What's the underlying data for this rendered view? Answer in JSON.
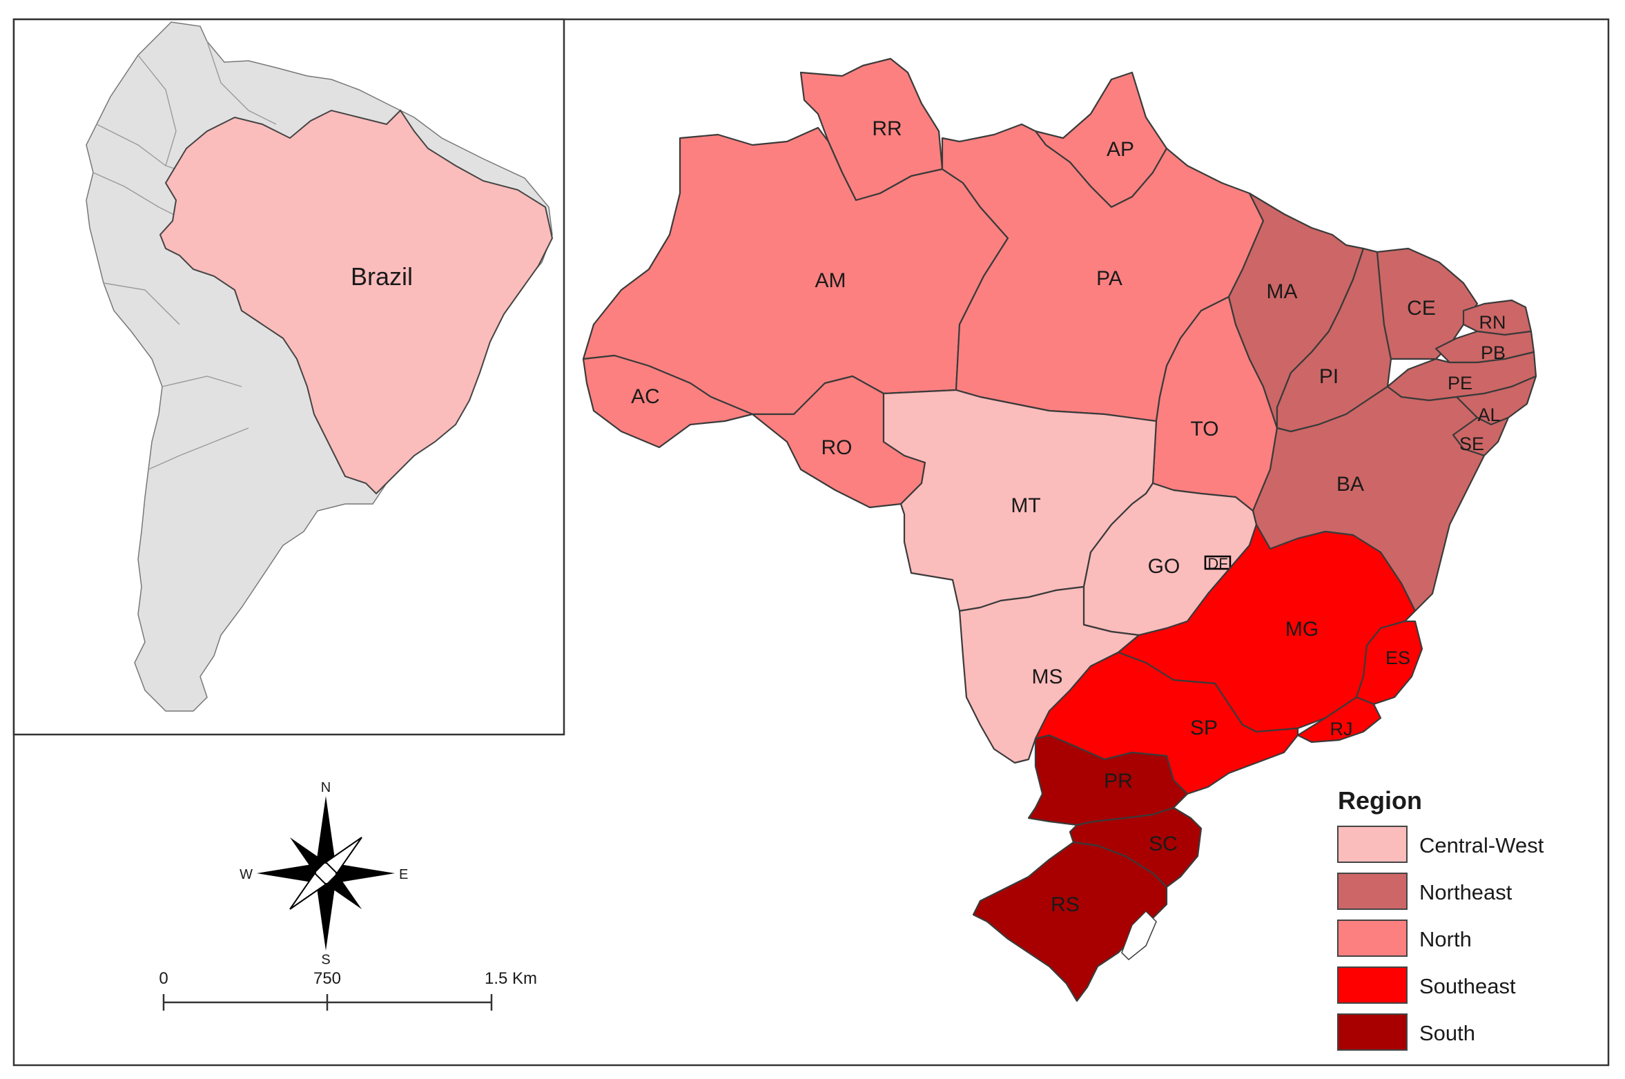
{
  "colors": {
    "Central-West": "#fbbcbc",
    "Northeast": "#cd6666",
    "North": "#fc8080",
    "Southeast": "#ff0000",
    "South": "#a80000",
    "context_land": "#e1e1e1",
    "brazil_inset": "#fbbcbc"
  },
  "inset": {
    "country_label": "Brazil"
  },
  "compass": {
    "n": "N",
    "s": "S",
    "e": "E",
    "w": "W"
  },
  "scale_bar": {
    "ticks": [
      "0",
      "750",
      "1.5 Km"
    ]
  },
  "legend": {
    "title": "Region",
    "items": [
      {
        "label": "Central-West",
        "color": "#fbbcbc"
      },
      {
        "label": "Northeast",
        "color": "#cd6666"
      },
      {
        "label": "North",
        "color": "#fc8080"
      },
      {
        "label": "Southeast",
        "color": "#ff0000"
      },
      {
        "label": "South",
        "color": "#a80000"
      }
    ]
  },
  "states": [
    {
      "code": "RR",
      "region": "North"
    },
    {
      "code": "AP",
      "region": "North"
    },
    {
      "code": "AM",
      "region": "North"
    },
    {
      "code": "PA",
      "region": "North"
    },
    {
      "code": "AC",
      "region": "North"
    },
    {
      "code": "RO",
      "region": "North"
    },
    {
      "code": "TO",
      "region": "North"
    },
    {
      "code": "MA",
      "region": "Northeast"
    },
    {
      "code": "CE",
      "region": "Northeast"
    },
    {
      "code": "RN",
      "region": "Northeast"
    },
    {
      "code": "PB",
      "region": "Northeast"
    },
    {
      "code": "PI",
      "region": "Northeast"
    },
    {
      "code": "PE",
      "region": "Northeast"
    },
    {
      "code": "AL",
      "region": "Northeast"
    },
    {
      "code": "SE",
      "region": "Northeast"
    },
    {
      "code": "BA",
      "region": "Northeast"
    },
    {
      "code": "MT",
      "region": "Central-West"
    },
    {
      "code": "GO",
      "region": "Central-West"
    },
    {
      "code": "DF",
      "region": "Central-West"
    },
    {
      "code": "MS",
      "region": "Central-West"
    },
    {
      "code": "MG",
      "region": "Southeast"
    },
    {
      "code": "ES",
      "region": "Southeast"
    },
    {
      "code": "SP",
      "region": "Southeast"
    },
    {
      "code": "RJ",
      "region": "Southeast"
    },
    {
      "code": "PR",
      "region": "South"
    },
    {
      "code": "SC",
      "region": "South"
    },
    {
      "code": "RS",
      "region": "South"
    }
  ]
}
